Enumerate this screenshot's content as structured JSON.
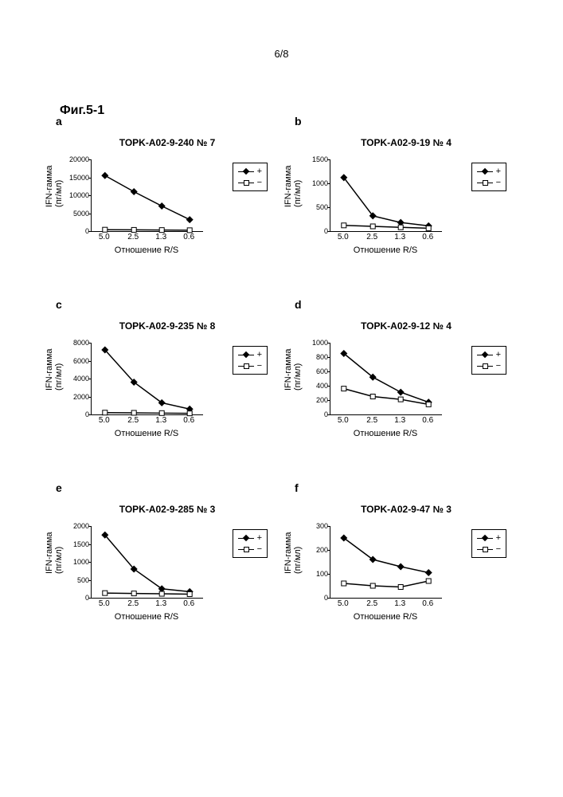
{
  "page_number": "6/8",
  "figure_label": "Фиг.5-1",
  "axis": {
    "ylabel": "IFN-гамма\n(пг/мл)",
    "xlabel": "Отношение R/S",
    "xticks": [
      "5.0",
      "2.5",
      "1.3",
      "0.6"
    ]
  },
  "legend": {
    "plus": "+",
    "minus": "−"
  },
  "style": {
    "line_color": "#000000",
    "bg": "#ffffff",
    "marker_filled": "diamond-filled",
    "marker_open": "square-open",
    "stroke_width": 1.5,
    "tick_fontsize": 9,
    "label_fontsize": 11,
    "title_fontsize": 12
  },
  "panels": [
    {
      "letter": "a",
      "title": "TOPK-A02-9-240 № 7",
      "ylim": [
        0,
        20000
      ],
      "ytick_step": 5000,
      "plus": [
        15500,
        11000,
        7000,
        3200
      ],
      "minus": [
        400,
        350,
        300,
        250
      ]
    },
    {
      "letter": "b",
      "title": "TOPK-A02-9-19 № 4",
      "ylim": [
        0,
        1500
      ],
      "ytick_step": 500,
      "plus": [
        1120,
        320,
        180,
        110
      ],
      "minus": [
        120,
        100,
        80,
        60
      ]
    },
    {
      "letter": "c",
      "title": "TOPK-A02-9-235 № 8",
      "ylim": [
        0,
        8000
      ],
      "ytick_step": 2000,
      "plus": [
        7200,
        3600,
        1300,
        600
      ],
      "minus": [
        200,
        180,
        150,
        120
      ]
    },
    {
      "letter": "d",
      "title": "TOPK-A02-9-12 № 4",
      "ylim": [
        0,
        1000
      ],
      "ytick_step": 200,
      "plus": [
        850,
        520,
        310,
        170
      ],
      "minus": [
        360,
        250,
        210,
        140
      ]
    },
    {
      "letter": "e",
      "title": "TOPK-A02-9-285 № 3",
      "ylim": [
        0,
        2000
      ],
      "ytick_step": 500,
      "plus": [
        1750,
        800,
        250,
        170
      ],
      "minus": [
        130,
        120,
        110,
        100
      ]
    },
    {
      "letter": "f",
      "title": "TOPK-A02-9-47 № 3",
      "ylim": [
        0,
        300
      ],
      "ytick_step": 100,
      "plus": [
        250,
        160,
        130,
        105
      ],
      "minus": [
        60,
        50,
        45,
        70
      ]
    }
  ]
}
